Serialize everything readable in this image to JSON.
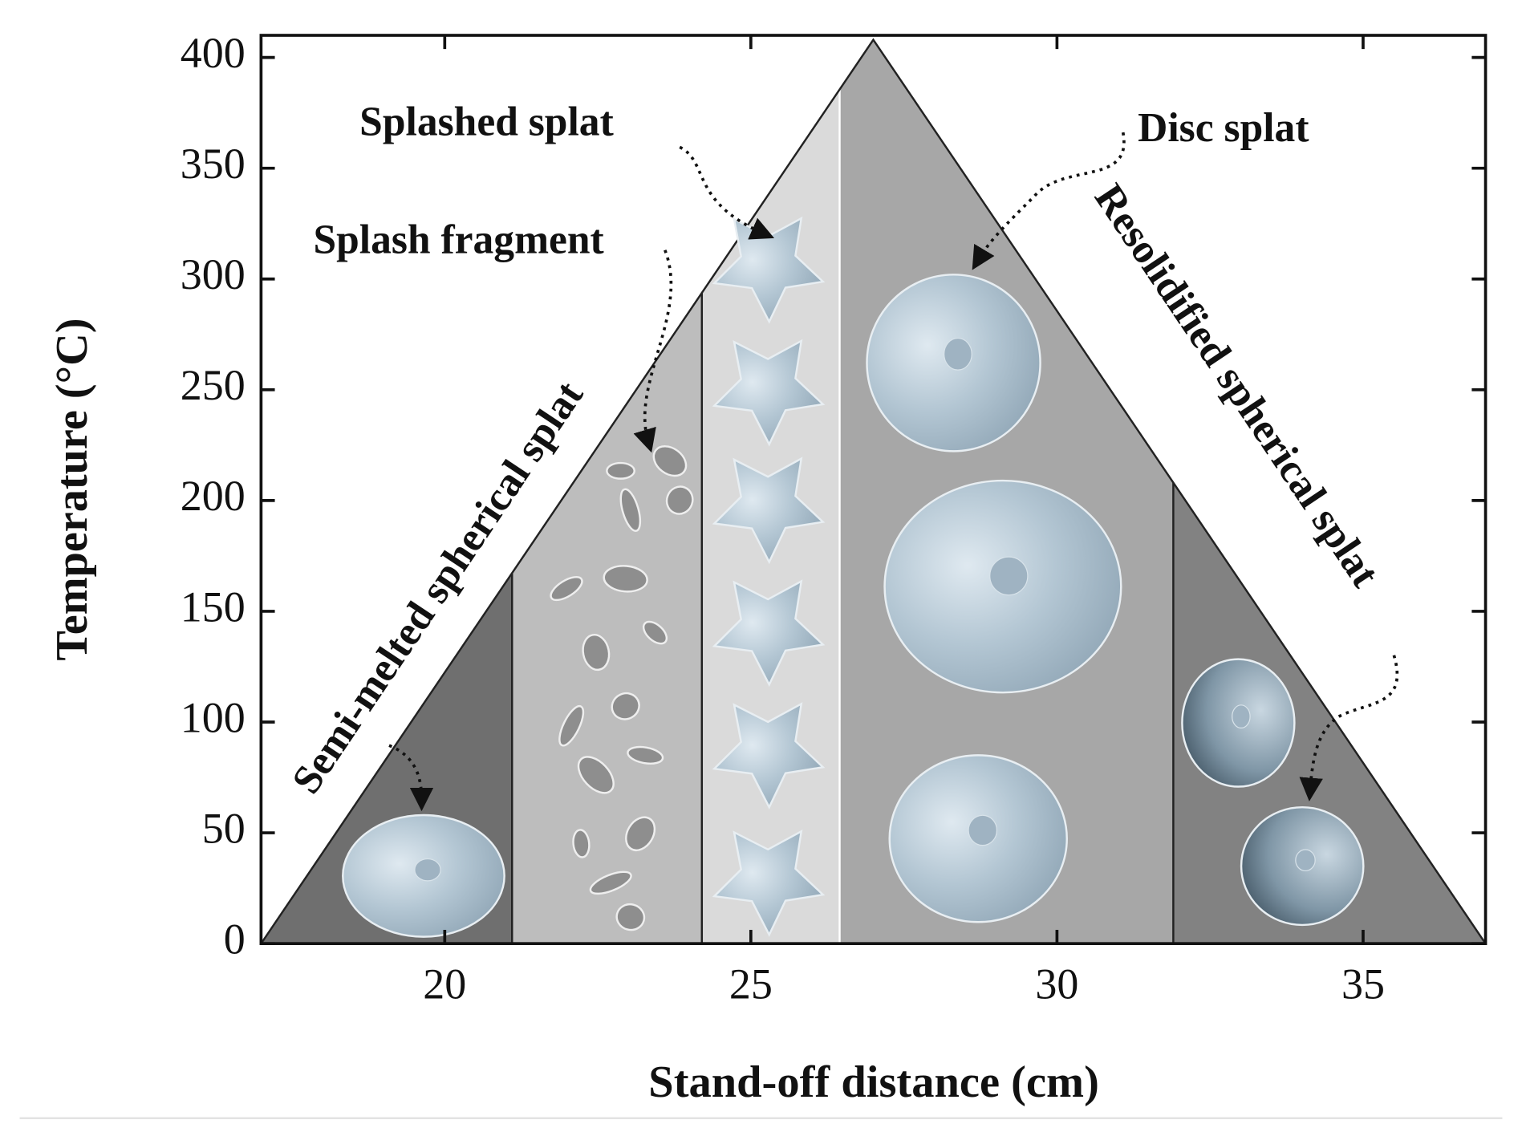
{
  "chart_data": {
    "type": "triangle-regions",
    "xlabel": "Stand-off distance (cm)",
    "ylabel": "Temperature (°C)",
    "xlim": [
      17,
      37
    ],
    "ylim": [
      0,
      410
    ],
    "xticks": [
      20,
      25,
      30,
      35
    ],
    "yticks": [
      0,
      50,
      100,
      150,
      200,
      250,
      300,
      350,
      400
    ],
    "triangle": {
      "x": [
        17,
        27,
        37
      ],
      "y": [
        0,
        408,
        0
      ]
    },
    "boundaries": [
      21.1,
      24.2,
      26.45,
      31.9
    ],
    "region_colors": [
      "#6f6f6f",
      "#bdbdbd",
      "#dadada",
      "#a7a7a7",
      "#828282"
    ],
    "annotations": [
      "Semi-melted spherical splat",
      "Splash fragment",
      "Splashed splat",
      "Disc splat",
      "Resolidified spherical splat"
    ]
  }
}
